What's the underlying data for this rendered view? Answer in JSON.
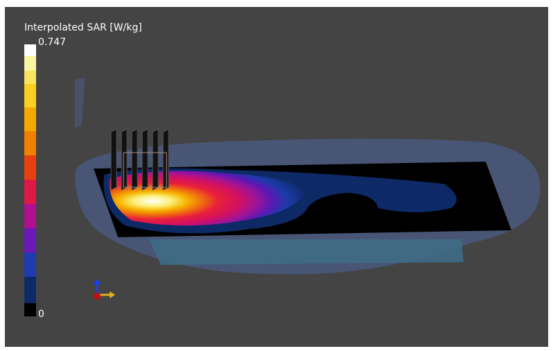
{
  "legend": {
    "title": "Interpolated SAR [W/kg]",
    "max": 0.747,
    "min": 0
  }
}
